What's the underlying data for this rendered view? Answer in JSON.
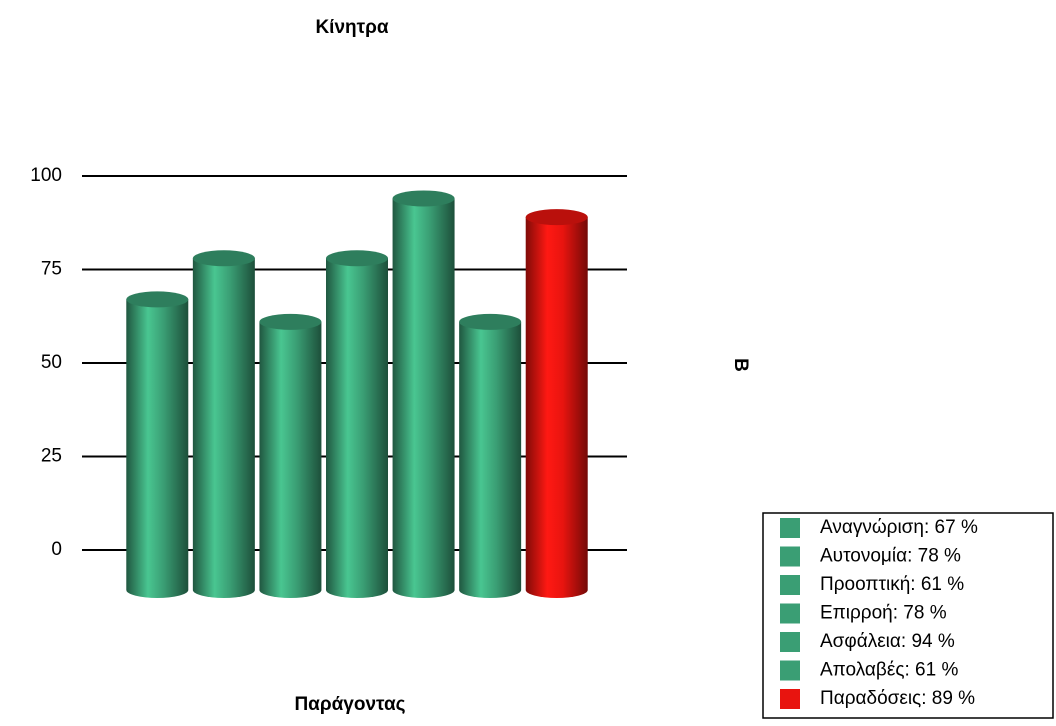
{
  "chart_data": {
    "type": "bar",
    "title": "Κίνητρα",
    "x_label": "Παράγοντας",
    "y_label": "Β",
    "categories": [
      "Αναγνώριση: 67 %",
      "Αυτονομία: 78 %",
      "Προοπτική: 61 %",
      "Επιρροή: 78 %",
      "Ασφάλεια: 94 %",
      "Απολαβές: 61 %",
      "Παραδόσεις: 89 %"
    ],
    "values": [
      67,
      78,
      61,
      78,
      94,
      61,
      89
    ],
    "colors": [
      "#3a9e74",
      "#3a9e74",
      "#3a9e74",
      "#3a9e74",
      "#3a9e74",
      "#3a9e74",
      "#e8140f"
    ],
    "ylim": [
      0,
      100
    ],
    "yticks": [
      0,
      25,
      50,
      75,
      100
    ],
    "grid": true,
    "legend": "lower right"
  }
}
